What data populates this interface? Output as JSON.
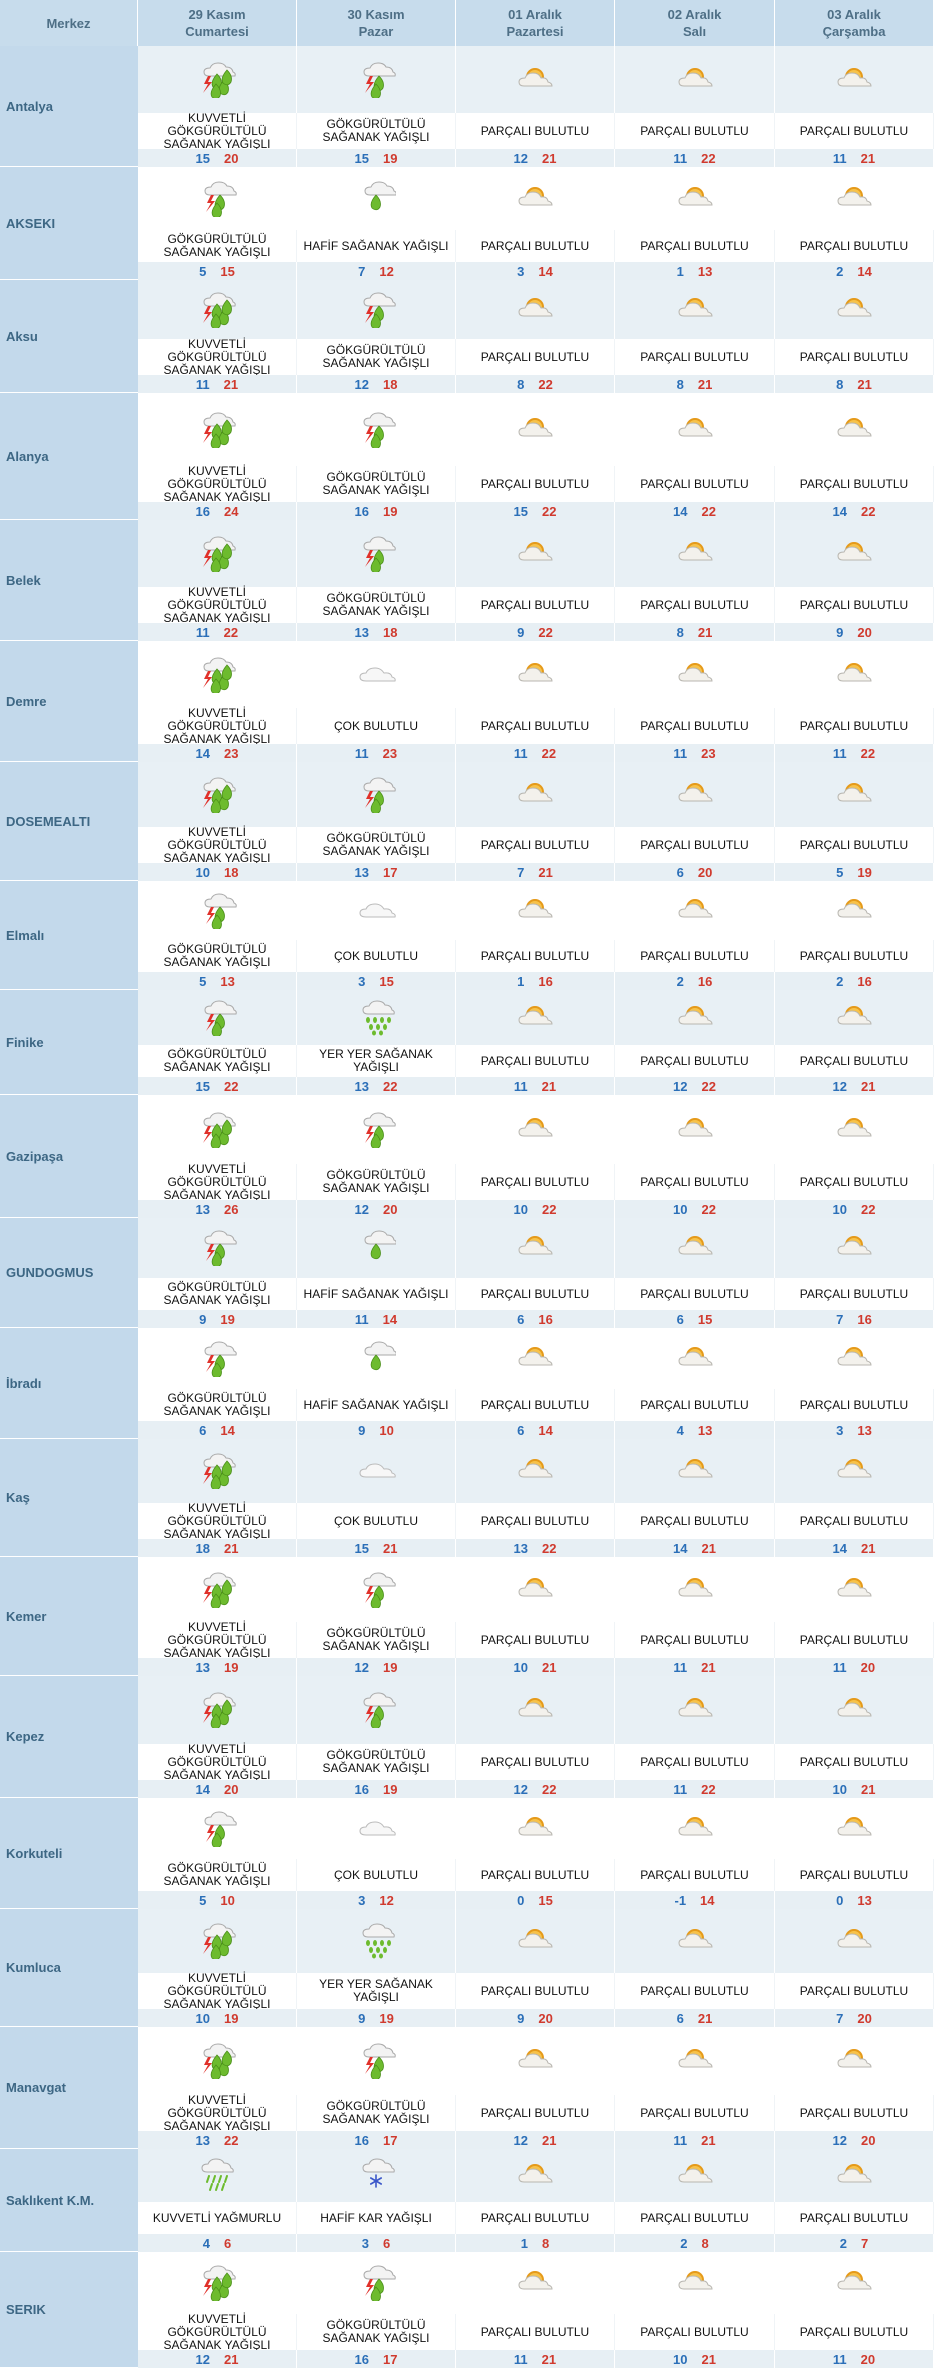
{
  "header": {
    "merkez_label": "Merkez",
    "days": [
      {
        "date": "29 Kasım",
        "weekday": "Cumartesi"
      },
      {
        "date": "30 Kasım",
        "weekday": "Pazar"
      },
      {
        "date": "01 Aralık",
        "weekday": "Pazartesi"
      },
      {
        "date": "02 Aralık",
        "weekday": "Salı"
      },
      {
        "date": "03 Aralık",
        "weekday": "Çarşamba"
      }
    ]
  },
  "colors": {
    "header_bg": "#c7dcec",
    "city_bg": "#c3d9eb",
    "icon_row_odd": "#e8f0f5",
    "icon_row_even": "#ffffff",
    "temp_row_bg": "#e7eff4",
    "min_temp": "#2b6fb8",
    "max_temp": "#d03a2e"
  },
  "cities": [
    {
      "name": "Antalya",
      "days": [
        {
          "icon": "thunder-rain-icon",
          "desc": "KUVVETLİ GÖKGÜRÜLTÜLÜ SAĞANAK YAĞIŞLI",
          "min": "15",
          "max": "20"
        },
        {
          "icon": "thunder-shower-icon",
          "desc": "GÖKGÜRÜLTÜLÜ SAĞANAK YAĞIŞLI",
          "min": "15",
          "max": "19"
        },
        {
          "icon": "partly-cloudy-icon",
          "desc": "PARÇALI BULUTLU",
          "min": "12",
          "max": "21"
        },
        {
          "icon": "partly-cloudy-icon",
          "desc": "PARÇALI BULUTLU",
          "min": "11",
          "max": "22"
        },
        {
          "icon": "partly-cloudy-icon",
          "desc": "PARÇALI BULUTLU",
          "min": "11",
          "max": "21"
        }
      ]
    },
    {
      "name": "AKSEKI",
      "days": [
        {
          "icon": "thunder-shower-icon",
          "desc": "GÖKGÜRÜLTÜLÜ SAĞANAK YAĞIŞLI",
          "min": "5",
          "max": "15"
        },
        {
          "icon": "light-shower-icon",
          "desc": "HAFİF SAĞANAK YAĞIŞLI",
          "min": "7",
          "max": "12"
        },
        {
          "icon": "partly-cloudy-icon",
          "desc": "PARÇALI BULUTLU",
          "min": "3",
          "max": "14"
        },
        {
          "icon": "partly-cloudy-icon",
          "desc": "PARÇALI BULUTLU",
          "min": "1",
          "max": "13"
        },
        {
          "icon": "partly-cloudy-icon",
          "desc": "PARÇALI BULUTLU",
          "min": "2",
          "max": "14"
        }
      ]
    },
    {
      "name": "Aksu",
      "days": [
        {
          "icon": "thunder-rain-icon",
          "desc": "KUVVETLİ GÖKGÜRÜLTÜLÜ SAĞANAK YAĞIŞLI",
          "min": "11",
          "max": "21"
        },
        {
          "icon": "thunder-shower-icon",
          "desc": "GÖKGÜRÜLTÜLÜ SAĞANAK YAĞIŞLI",
          "min": "12",
          "max": "18"
        },
        {
          "icon": "partly-cloudy-icon",
          "desc": "PARÇALI BULUTLU",
          "min": "8",
          "max": "22"
        },
        {
          "icon": "partly-cloudy-icon",
          "desc": "PARÇALI BULUTLU",
          "min": "8",
          "max": "21"
        },
        {
          "icon": "partly-cloudy-icon",
          "desc": "PARÇALI BULUTLU",
          "min": "8",
          "max": "21"
        }
      ]
    },
    {
      "name": "Alanya",
      "days": [
        {
          "icon": "thunder-rain-icon",
          "desc": "KUVVETLİ GÖKGÜRÜLTÜLÜ SAĞANAK YAĞIŞLI",
          "min": "16",
          "max": "24"
        },
        {
          "icon": "thunder-shower-icon",
          "desc": "GÖKGÜRÜLTÜLÜ SAĞANAK YAĞIŞLI",
          "min": "16",
          "max": "19"
        },
        {
          "icon": "partly-cloudy-icon",
          "desc": "PARÇALI BULUTLU",
          "min": "15",
          "max": "22"
        },
        {
          "icon": "partly-cloudy-icon",
          "desc": "PARÇALI BULUTLU",
          "min": "14",
          "max": "22"
        },
        {
          "icon": "partly-cloudy-icon",
          "desc": "PARÇALI BULUTLU",
          "min": "14",
          "max": "22"
        }
      ]
    },
    {
      "name": "Belek",
      "days": [
        {
          "icon": "thunder-rain-icon",
          "desc": "KUVVETLİ GÖKGÜRÜLTÜLÜ SAĞANAK YAĞIŞLI",
          "min": "11",
          "max": "22"
        },
        {
          "icon": "thunder-shower-icon",
          "desc": "GÖKGÜRÜLTÜLÜ SAĞANAK YAĞIŞLI",
          "min": "13",
          "max": "18"
        },
        {
          "icon": "partly-cloudy-icon",
          "desc": "PARÇALI BULUTLU",
          "min": "9",
          "max": "22"
        },
        {
          "icon": "partly-cloudy-icon",
          "desc": "PARÇALI BULUTLU",
          "min": "8",
          "max": "21"
        },
        {
          "icon": "partly-cloudy-icon",
          "desc": "PARÇALI BULUTLU",
          "min": "9",
          "max": "20"
        }
      ]
    },
    {
      "name": "Demre",
      "days": [
        {
          "icon": "thunder-rain-icon",
          "desc": "KUVVETLİ GÖKGÜRÜLTÜLÜ SAĞANAK YAĞIŞLI",
          "min": "14",
          "max": "23"
        },
        {
          "icon": "cloudy-icon",
          "desc": "ÇOK BULUTLU",
          "min": "11",
          "max": "23"
        },
        {
          "icon": "partly-cloudy-icon",
          "desc": "PARÇALI BULUTLU",
          "min": "11",
          "max": "22"
        },
        {
          "icon": "partly-cloudy-icon",
          "desc": "PARÇALI BULUTLU",
          "min": "11",
          "max": "23"
        },
        {
          "icon": "partly-cloudy-icon",
          "desc": "PARÇALI BULUTLU",
          "min": "11",
          "max": "22"
        }
      ]
    },
    {
      "name": "DOSEMEALTI",
      "days": [
        {
          "icon": "thunder-rain-icon",
          "desc": "KUVVETLİ GÖKGÜRÜLTÜLÜ SAĞANAK YAĞIŞLI",
          "min": "10",
          "max": "18"
        },
        {
          "icon": "thunder-shower-icon",
          "desc": "GÖKGÜRÜLTÜLÜ SAĞANAK YAĞIŞLI",
          "min": "13",
          "max": "17"
        },
        {
          "icon": "partly-cloudy-icon",
          "desc": "PARÇALI BULUTLU",
          "min": "7",
          "max": "21"
        },
        {
          "icon": "partly-cloudy-icon",
          "desc": "PARÇALI BULUTLU",
          "min": "6",
          "max": "20"
        },
        {
          "icon": "partly-cloudy-icon",
          "desc": "PARÇALI BULUTLU",
          "min": "5",
          "max": "19"
        }
      ]
    },
    {
      "name": "Elmalı",
      "days": [
        {
          "icon": "thunder-shower-icon",
          "desc": "GÖKGÜRÜLTÜLÜ SAĞANAK YAĞIŞLI",
          "min": "5",
          "max": "13"
        },
        {
          "icon": "cloudy-icon",
          "desc": "ÇOK BULUTLU",
          "min": "3",
          "max": "15"
        },
        {
          "icon": "partly-cloudy-icon",
          "desc": "PARÇALI BULUTLU",
          "min": "1",
          "max": "16"
        },
        {
          "icon": "partly-cloudy-icon",
          "desc": "PARÇALI BULUTLU",
          "min": "2",
          "max": "16"
        },
        {
          "icon": "partly-cloudy-icon",
          "desc": "PARÇALI BULUTLU",
          "min": "2",
          "max": "16"
        }
      ]
    },
    {
      "name": "Finike",
      "days": [
        {
          "icon": "thunder-shower-icon",
          "desc": "GÖKGÜRÜLTÜLÜ SAĞANAK YAĞIŞLI",
          "min": "15",
          "max": "22"
        },
        {
          "icon": "scattered-shower-icon",
          "desc": "YER YER SAĞANAK YAĞIŞLI",
          "min": "13",
          "max": "22"
        },
        {
          "icon": "partly-cloudy-icon",
          "desc": "PARÇALI BULUTLU",
          "min": "11",
          "max": "21"
        },
        {
          "icon": "partly-cloudy-icon",
          "desc": "PARÇALI BULUTLU",
          "min": "12",
          "max": "22"
        },
        {
          "icon": "partly-cloudy-icon",
          "desc": "PARÇALI BULUTLU",
          "min": "12",
          "max": "21"
        }
      ]
    },
    {
      "name": "Gazipaşa",
      "days": [
        {
          "icon": "thunder-rain-icon",
          "desc": "KUVVETLİ GÖKGÜRÜLTÜLÜ SAĞANAK YAĞIŞLI",
          "min": "13",
          "max": "26"
        },
        {
          "icon": "thunder-shower-icon",
          "desc": "GÖKGÜRÜLTÜLÜ SAĞANAK YAĞIŞLI",
          "min": "12",
          "max": "20"
        },
        {
          "icon": "partly-cloudy-icon",
          "desc": "PARÇALI BULUTLU",
          "min": "10",
          "max": "22"
        },
        {
          "icon": "partly-cloudy-icon",
          "desc": "PARÇALI BULUTLU",
          "min": "10",
          "max": "22"
        },
        {
          "icon": "partly-cloudy-icon",
          "desc": "PARÇALI BULUTLU",
          "min": "10",
          "max": "22"
        }
      ]
    },
    {
      "name": "GUNDOGMUS",
      "days": [
        {
          "icon": "thunder-shower-icon",
          "desc": "GÖKGÜRÜLTÜLÜ SAĞANAK YAĞIŞLI",
          "min": "9",
          "max": "19"
        },
        {
          "icon": "light-shower-icon",
          "desc": "HAFİF SAĞANAK YAĞIŞLI",
          "min": "11",
          "max": "14"
        },
        {
          "icon": "partly-cloudy-icon",
          "desc": "PARÇALI BULUTLU",
          "min": "6",
          "max": "16"
        },
        {
          "icon": "partly-cloudy-icon",
          "desc": "PARÇALI BULUTLU",
          "min": "6",
          "max": "15"
        },
        {
          "icon": "partly-cloudy-icon",
          "desc": "PARÇALI BULUTLU",
          "min": "7",
          "max": "16"
        }
      ]
    },
    {
      "name": "İbradı",
      "days": [
        {
          "icon": "thunder-shower-icon",
          "desc": "GÖKGÜRÜLTÜLÜ SAĞANAK YAĞIŞLI",
          "min": "6",
          "max": "14"
        },
        {
          "icon": "light-shower-icon",
          "desc": "HAFİF SAĞANAK YAĞIŞLI",
          "min": "9",
          "max": "10"
        },
        {
          "icon": "partly-cloudy-icon",
          "desc": "PARÇALI BULUTLU",
          "min": "6",
          "max": "14"
        },
        {
          "icon": "partly-cloudy-icon",
          "desc": "PARÇALI BULUTLU",
          "min": "4",
          "max": "13"
        },
        {
          "icon": "partly-cloudy-icon",
          "desc": "PARÇALI BULUTLU",
          "min": "3",
          "max": "13"
        }
      ]
    },
    {
      "name": "Kaş",
      "days": [
        {
          "icon": "thunder-rain-icon",
          "desc": "KUVVETLİ GÖKGÜRÜLTÜLÜ SAĞANAK YAĞIŞLI",
          "min": "18",
          "max": "21"
        },
        {
          "icon": "cloudy-icon",
          "desc": "ÇOK BULUTLU",
          "min": "15",
          "max": "21"
        },
        {
          "icon": "partly-cloudy-icon",
          "desc": "PARÇALI BULUTLU",
          "min": "13",
          "max": "22"
        },
        {
          "icon": "partly-cloudy-icon",
          "desc": "PARÇALI BULUTLU",
          "min": "14",
          "max": "21"
        },
        {
          "icon": "partly-cloudy-icon",
          "desc": "PARÇALI BULUTLU",
          "min": "14",
          "max": "21"
        }
      ]
    },
    {
      "name": "Kemer",
      "days": [
        {
          "icon": "thunder-rain-icon",
          "desc": "KUVVETLİ GÖKGÜRÜLTÜLÜ SAĞANAK YAĞIŞLI",
          "min": "13",
          "max": "19"
        },
        {
          "icon": "thunder-shower-icon",
          "desc": "GÖKGÜRÜLTÜLÜ SAĞANAK YAĞIŞLI",
          "min": "12",
          "max": "19"
        },
        {
          "icon": "partly-cloudy-icon",
          "desc": "PARÇALI BULUTLU",
          "min": "10",
          "max": "21"
        },
        {
          "icon": "partly-cloudy-icon",
          "desc": "PARÇALI BULUTLU",
          "min": "11",
          "max": "21"
        },
        {
          "icon": "partly-cloudy-icon",
          "desc": "PARÇALI BULUTLU",
          "min": "11",
          "max": "20"
        }
      ]
    },
    {
      "name": "Kepez",
      "days": [
        {
          "icon": "thunder-rain-icon",
          "desc": "KUVVETLİ GÖKGÜRÜLTÜLÜ SAĞANAK YAĞIŞLI",
          "min": "14",
          "max": "20"
        },
        {
          "icon": "thunder-shower-icon",
          "desc": "GÖKGÜRÜLTÜLÜ SAĞANAK YAĞIŞLI",
          "min": "16",
          "max": "19"
        },
        {
          "icon": "partly-cloudy-icon",
          "desc": "PARÇALI BULUTLU",
          "min": "12",
          "max": "22"
        },
        {
          "icon": "partly-cloudy-icon",
          "desc": "PARÇALI BULUTLU",
          "min": "11",
          "max": "22"
        },
        {
          "icon": "partly-cloudy-icon",
          "desc": "PARÇALI BULUTLU",
          "min": "10",
          "max": "21"
        }
      ]
    },
    {
      "name": "Korkuteli",
      "days": [
        {
          "icon": "thunder-shower-icon",
          "desc": "GÖKGÜRÜLTÜLÜ SAĞANAK YAĞIŞLI",
          "min": "5",
          "max": "10"
        },
        {
          "icon": "cloudy-icon",
          "desc": "ÇOK BULUTLU",
          "min": "3",
          "max": "12"
        },
        {
          "icon": "partly-cloudy-icon",
          "desc": "PARÇALI BULUTLU",
          "min": "0",
          "max": "15"
        },
        {
          "icon": "partly-cloudy-icon",
          "desc": "PARÇALI BULUTLU",
          "min": "-1",
          "max": "14"
        },
        {
          "icon": "partly-cloudy-icon",
          "desc": "PARÇALI BULUTLU",
          "min": "0",
          "max": "13"
        }
      ]
    },
    {
      "name": "Kumluca",
      "days": [
        {
          "icon": "thunder-rain-icon",
          "desc": "KUVVETLİ GÖKGÜRÜLTÜLÜ SAĞANAK YAĞIŞLI",
          "min": "10",
          "max": "19"
        },
        {
          "icon": "scattered-shower-icon",
          "desc": "YER YER SAĞANAK YAĞIŞLI",
          "min": "9",
          "max": "19"
        },
        {
          "icon": "partly-cloudy-icon",
          "desc": "PARÇALI BULUTLU",
          "min": "9",
          "max": "20"
        },
        {
          "icon": "partly-cloudy-icon",
          "desc": "PARÇALI BULUTLU",
          "min": "6",
          "max": "21"
        },
        {
          "icon": "partly-cloudy-icon",
          "desc": "PARÇALI BULUTLU",
          "min": "7",
          "max": "20"
        }
      ]
    },
    {
      "name": "Manavgat",
      "days": [
        {
          "icon": "thunder-rain-icon",
          "desc": "KUVVETLİ GÖKGÜRÜLTÜLÜ SAĞANAK YAĞIŞLI",
          "min": "13",
          "max": "22"
        },
        {
          "icon": "thunder-shower-icon",
          "desc": "GÖKGÜRÜLTÜLÜ SAĞANAK YAĞIŞLI",
          "min": "16",
          "max": "17"
        },
        {
          "icon": "partly-cloudy-icon",
          "desc": "PARÇALI BULUTLU",
          "min": "12",
          "max": "21"
        },
        {
          "icon": "partly-cloudy-icon",
          "desc": "PARÇALI BULUTLU",
          "min": "11",
          "max": "21"
        },
        {
          "icon": "partly-cloudy-icon",
          "desc": "PARÇALI BULUTLU",
          "min": "12",
          "max": "20"
        }
      ]
    },
    {
      "name": "Saklıkent K.M.",
      "days": [
        {
          "icon": "heavy-rain-icon",
          "desc": "KUVVETLİ YAĞMURLU",
          "min": "4",
          "max": "6"
        },
        {
          "icon": "light-snow-icon",
          "desc": "HAFİF KAR YAĞIŞLI",
          "min": "3",
          "max": "6"
        },
        {
          "icon": "partly-cloudy-icon",
          "desc": "PARÇALI BULUTLU",
          "min": "1",
          "max": "8"
        },
        {
          "icon": "partly-cloudy-icon",
          "desc": "PARÇALI BULUTLU",
          "min": "2",
          "max": "8"
        },
        {
          "icon": "partly-cloudy-icon",
          "desc": "PARÇALI BULUTLU",
          "min": "2",
          "max": "7"
        }
      ]
    },
    {
      "name": "SERIK",
      "days": [
        {
          "icon": "thunder-rain-icon",
          "desc": "KUVVETLİ GÖKGÜRÜLTÜLÜ SAĞANAK YAĞIŞLI",
          "min": "12",
          "max": "21"
        },
        {
          "icon": "thunder-shower-icon",
          "desc": "GÖKGÜRÜLTÜLÜ SAĞANAK YAĞIŞLI",
          "min": "16",
          "max": "17"
        },
        {
          "icon": "partly-cloudy-icon",
          "desc": "PARÇALI BULUTLU",
          "min": "11",
          "max": "21"
        },
        {
          "icon": "partly-cloudy-icon",
          "desc": "PARÇALI BULUTLU",
          "min": "10",
          "max": "21"
        },
        {
          "icon": "partly-cloudy-icon",
          "desc": "PARÇALI BULUTLU",
          "min": "11",
          "max": "20"
        }
      ]
    }
  ]
}
